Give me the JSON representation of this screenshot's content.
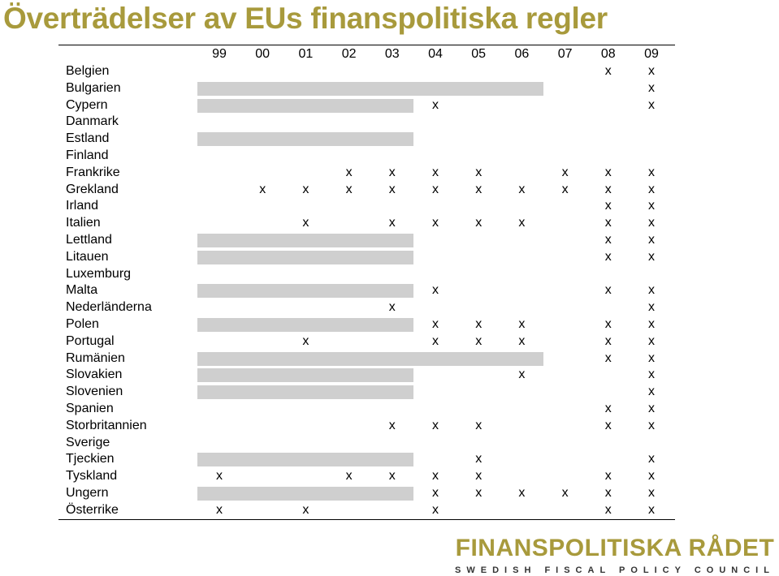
{
  "title": "Överträdelser av EUs finanspolitiska regler",
  "years": [
    "99",
    "00",
    "01",
    "02",
    "03",
    "04",
    "05",
    "06",
    "07",
    "08",
    "09"
  ],
  "colors": {
    "title": "#a89a3c",
    "bar": "#cfcfcf"
  },
  "rows": [
    {
      "country": "Belgien",
      "marks": [
        9,
        10
      ],
      "shade": null
    },
    {
      "country": "Bulgarien",
      "marks": [
        10
      ],
      "shade": [
        0,
        8
      ]
    },
    {
      "country": "Cypern",
      "marks": [
        5,
        10
      ],
      "shade": [
        0,
        5
      ]
    },
    {
      "country": "Danmark",
      "marks": [],
      "shade": null
    },
    {
      "country": "Estland",
      "marks": [],
      "shade": [
        0,
        5
      ]
    },
    {
      "country": "Finland",
      "marks": [],
      "shade": null
    },
    {
      "country": "Frankrike",
      "marks": [
        3,
        4,
        5,
        6,
        8,
        9,
        10
      ],
      "shade": null
    },
    {
      "country": "Grekland",
      "marks": [
        1,
        2,
        3,
        4,
        5,
        6,
        7,
        8,
        9,
        10
      ],
      "shade": null
    },
    {
      "country": "Irland",
      "marks": [
        9,
        10
      ],
      "shade": null
    },
    {
      "country": "Italien",
      "marks": [
        2,
        4,
        5,
        6,
        7,
        9,
        10
      ],
      "shade": null
    },
    {
      "country": "Lettland",
      "marks": [
        9,
        10
      ],
      "shade": [
        0,
        5
      ]
    },
    {
      "country": "Litauen",
      "marks": [
        9,
        10
      ],
      "shade": [
        0,
        5
      ]
    },
    {
      "country": "Luxemburg",
      "marks": [],
      "shade": null
    },
    {
      "country": "Malta",
      "marks": [
        5,
        9,
        10
      ],
      "shade": [
        0,
        5
      ]
    },
    {
      "country": "Nederländerna",
      "marks": [
        4,
        10
      ],
      "shade": null
    },
    {
      "country": "Polen",
      "marks": [
        5,
        6,
        7,
        9,
        10
      ],
      "shade": [
        0,
        5
      ]
    },
    {
      "country": "Portugal",
      "marks": [
        2,
        5,
        6,
        7,
        9,
        10
      ],
      "shade": null
    },
    {
      "country": "Rumänien",
      "marks": [
        9,
        10
      ],
      "shade": [
        0,
        8
      ]
    },
    {
      "country": "Slovakien",
      "marks": [
        7,
        10
      ],
      "shade": [
        0,
        5
      ]
    },
    {
      "country": "Slovenien",
      "marks": [
        10
      ],
      "shade": [
        0,
        5
      ]
    },
    {
      "country": "Spanien",
      "marks": [
        9,
        10
      ],
      "shade": null
    },
    {
      "country": "Storbritannien",
      "marks": [
        4,
        5,
        6,
        9,
        10
      ],
      "shade": null
    },
    {
      "country": "Sverige",
      "marks": [],
      "shade": null
    },
    {
      "country": "Tjeckien",
      "marks": [
        6,
        10
      ],
      "shade": [
        0,
        5
      ]
    },
    {
      "country": "Tyskland",
      "marks": [
        0,
        3,
        4,
        5,
        6,
        9,
        10
      ],
      "shade": null
    },
    {
      "country": "Ungern",
      "marks": [
        5,
        6,
        7,
        8,
        9,
        10
      ],
      "shade": [
        0,
        5
      ]
    },
    {
      "country": "Österrike",
      "marks": [
        0,
        2,
        5,
        9,
        10
      ],
      "shade": null
    }
  ],
  "mark_symbol": "x",
  "logo": {
    "title": "FINANSPOLITISKA RÅDET",
    "subtitle": "SWEDISH FISCAL POLICY COUNCIL"
  }
}
